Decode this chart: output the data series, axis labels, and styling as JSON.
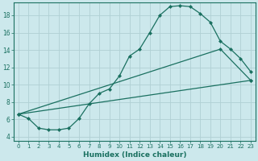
{
  "xlabel": "Humidex (Indice chaleur)",
  "bg_color": "#cce8ec",
  "grid_color": "#b0d0d4",
  "line_color": "#1a7060",
  "xlim": [
    -0.5,
    23.5
  ],
  "ylim": [
    3.5,
    19.5
  ],
  "xticks": [
    0,
    1,
    2,
    3,
    4,
    5,
    6,
    7,
    8,
    9,
    10,
    11,
    12,
    13,
    14,
    15,
    16,
    17,
    18,
    19,
    20,
    21,
    22,
    23
  ],
  "yticks": [
    4,
    6,
    8,
    10,
    12,
    14,
    16,
    18
  ],
  "curve1_x": [
    0,
    1,
    2,
    3,
    4,
    5,
    6,
    7,
    8,
    9,
    10,
    11,
    12,
    13,
    14,
    15,
    16,
    17,
    18,
    19,
    20,
    21,
    22,
    23
  ],
  "curve1_y": [
    6.6,
    6.1,
    5.0,
    4.8,
    4.8,
    5.0,
    6.1,
    7.8,
    9.0,
    9.5,
    11.0,
    13.3,
    14.1,
    16.0,
    18.0,
    19.0,
    19.1,
    19.0,
    18.2,
    17.2,
    15.0,
    14.1,
    13.0,
    11.5
  ],
  "curve2_x": [
    0,
    23
  ],
  "curve2_y": [
    6.6,
    10.5
  ],
  "curve3_x": [
    0,
    20,
    23
  ],
  "curve3_y": [
    6.6,
    14.1,
    10.5
  ]
}
